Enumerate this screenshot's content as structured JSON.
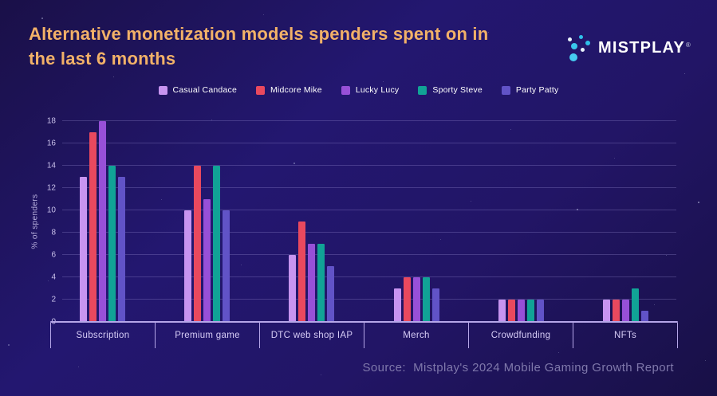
{
  "header": {
    "title_lines": [
      "Alternative monetization models spenders spent on in",
      "the last 6 months"
    ],
    "logo_text": "MISTPLAY",
    "logo_registered": "®"
  },
  "theme": {
    "title_color": "#f2b168",
    "background_color": "#221566",
    "axis_color": "#b5a6e8",
    "logo_dot_color": "#3ac7ed"
  },
  "chart_data": {
    "type": "bar",
    "title": "Alternative monetization models spenders spent on in the last 6 months",
    "xlabel": "",
    "ylabel": "% of spenders",
    "categories": [
      "Subscription",
      "Premium game",
      "DTC web shop IAP",
      "Merch",
      "Crowdfunding",
      "NFTs"
    ],
    "series": [
      {
        "name": "Casual Candace",
        "color": "#c794f0",
        "values": [
          13,
          10,
          6,
          3,
          2,
          2
        ]
      },
      {
        "name": "Midcore Mike",
        "color": "#e9495e",
        "values": [
          17,
          14,
          9,
          4,
          2,
          2
        ]
      },
      {
        "name": "Lucky Lucy",
        "color": "#9750d8",
        "values": [
          18,
          11,
          7,
          4,
          2,
          2
        ]
      },
      {
        "name": "Sporty Steve",
        "color": "#11a396",
        "values": [
          14,
          14,
          7,
          4,
          2,
          3
        ]
      },
      {
        "name": "Party Patty",
        "color": "#6153c7",
        "values": [
          13,
          10,
          5,
          3,
          2,
          1
        ]
      }
    ],
    "yticks": [
      0,
      2,
      4,
      6,
      8,
      10,
      12,
      14,
      16,
      18
    ],
    "ylim": [
      0,
      18
    ],
    "grid": true,
    "legend_position": "top"
  },
  "footer": {
    "source": "Source:  Mistplay's 2024 Mobile Gaming Growth Report"
  }
}
